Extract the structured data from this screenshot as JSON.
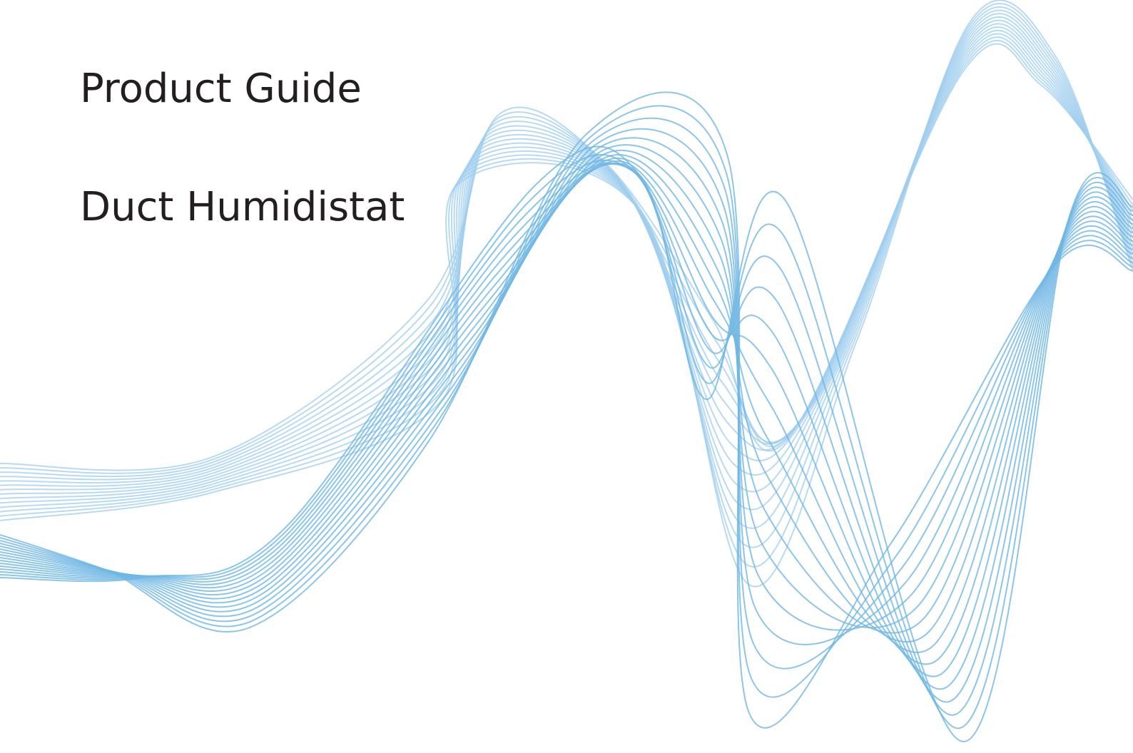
{
  "header": {
    "title": "Product Guide",
    "subtitle": "Duct Humidistat"
  }
}
